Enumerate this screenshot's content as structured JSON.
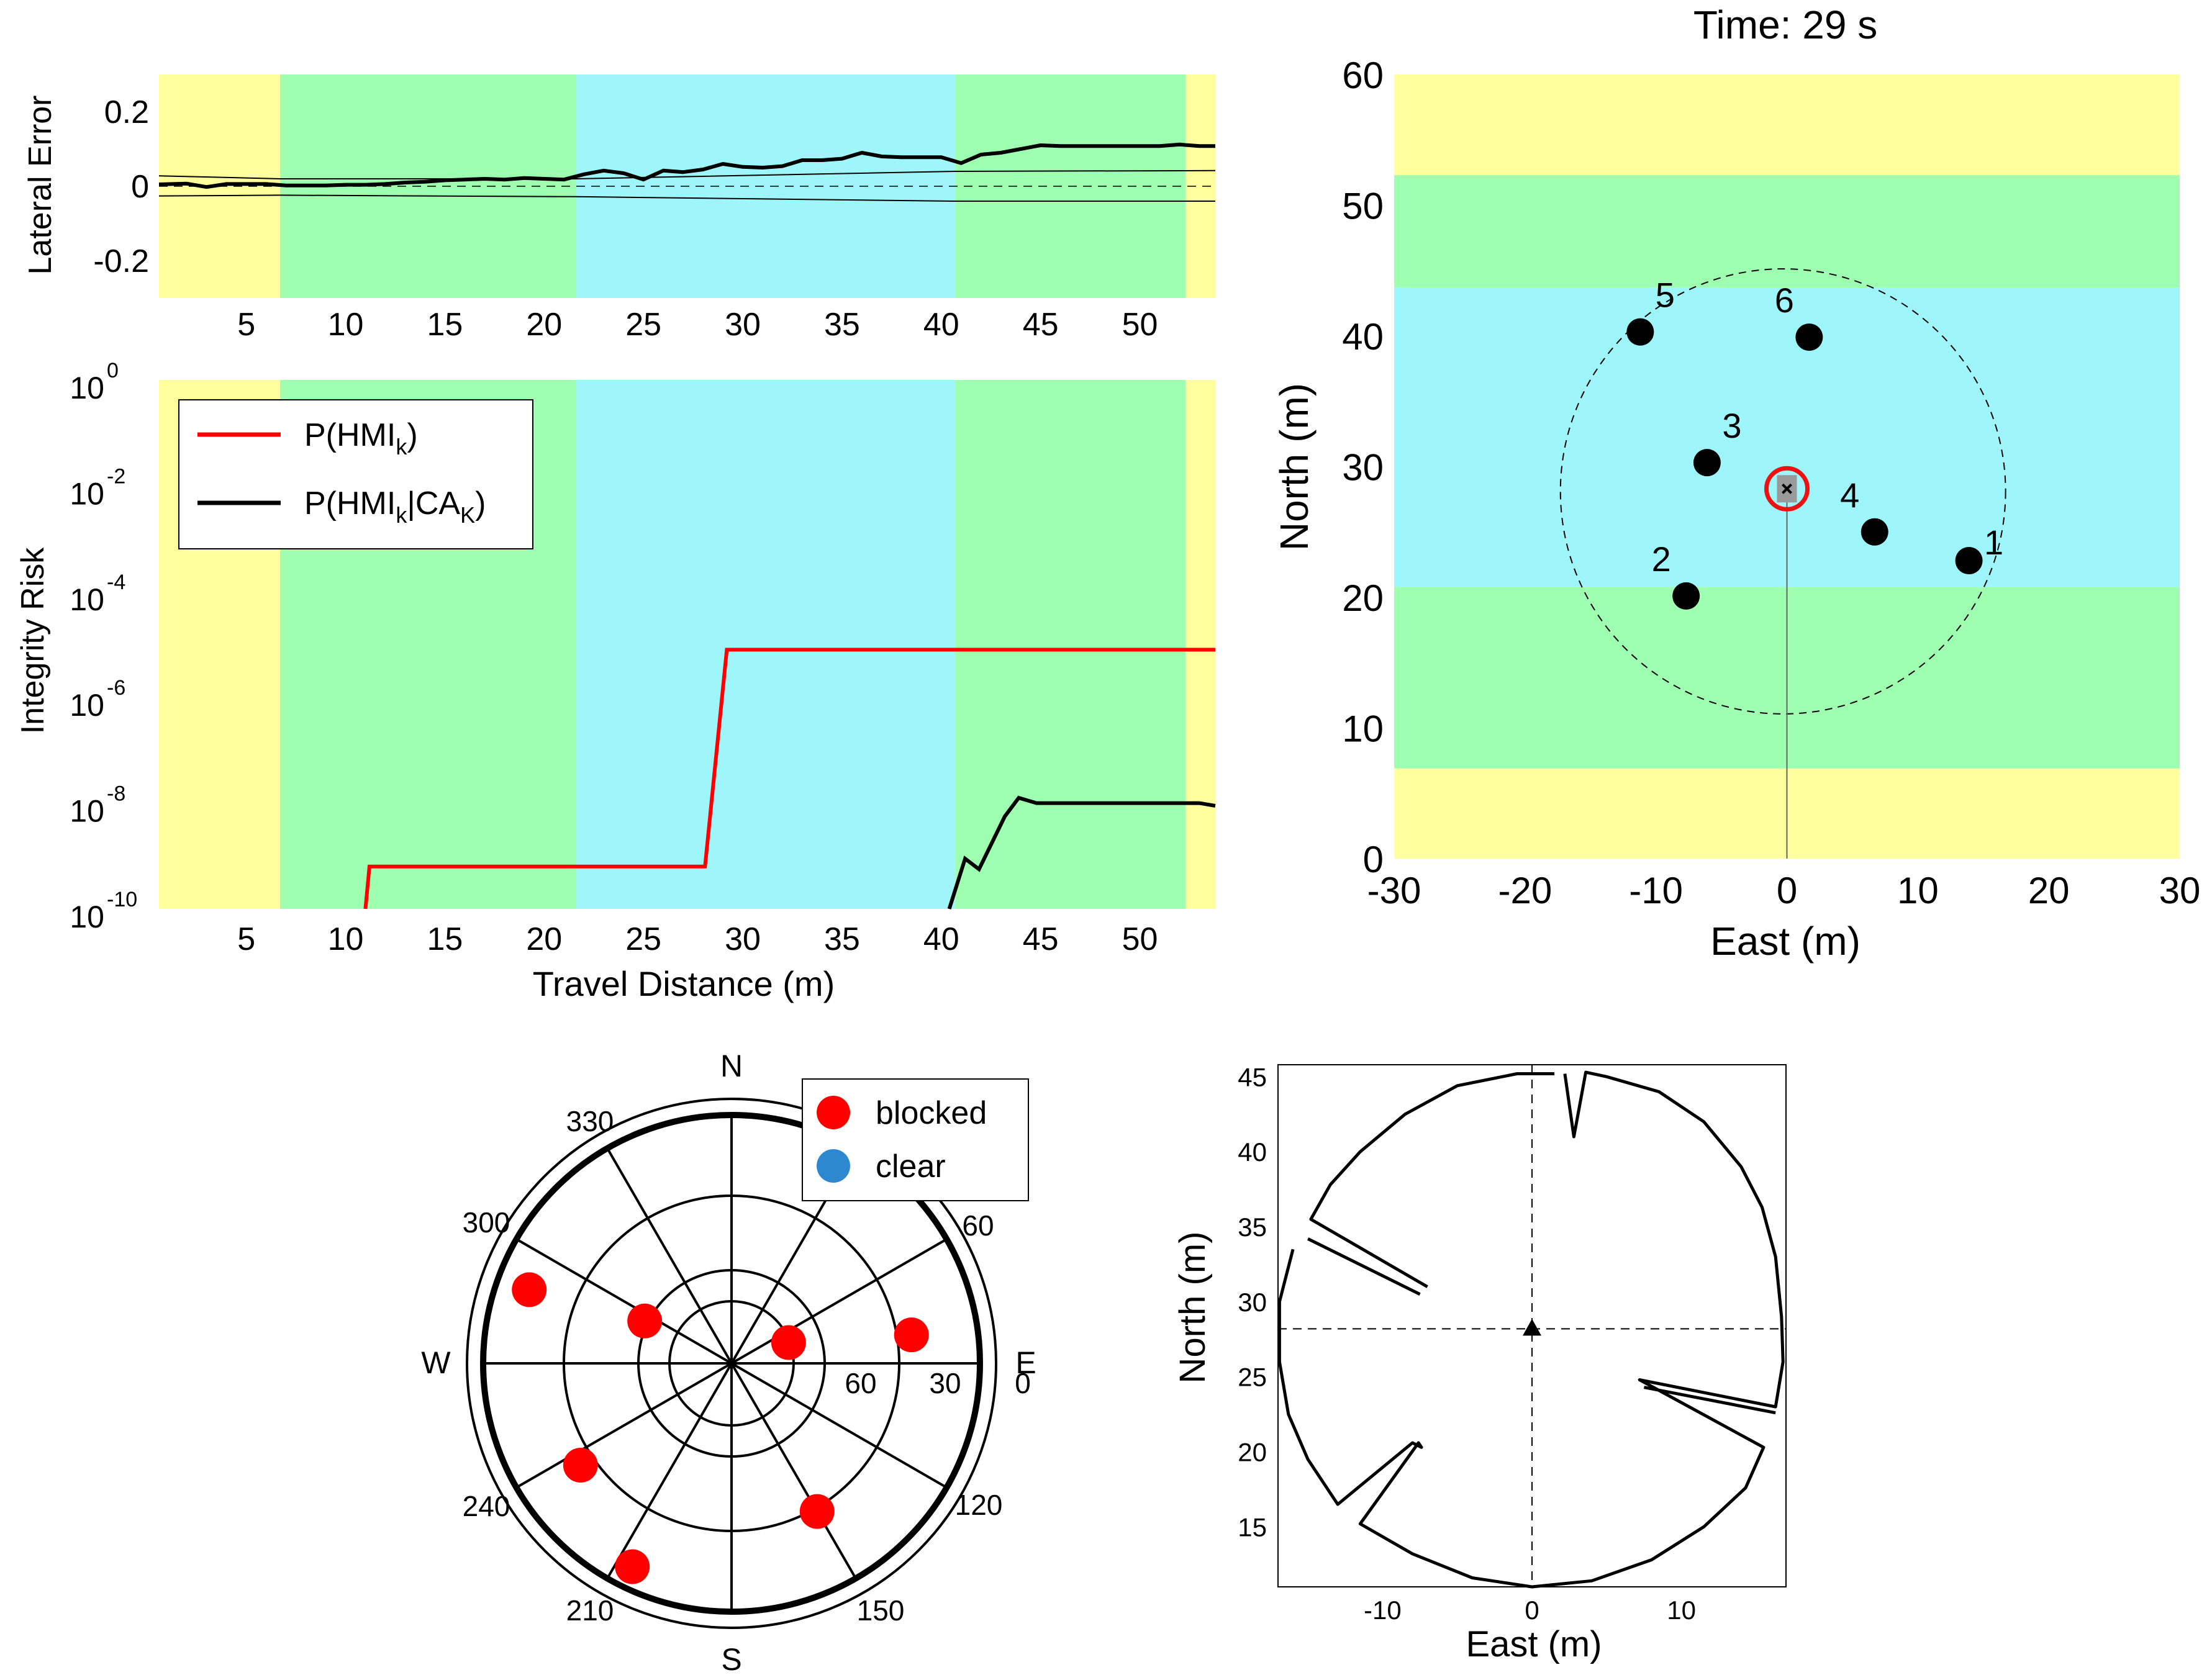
{
  "chart_data": [
    {
      "id": "lateral",
      "type": "line",
      "ylabel": "Lateral Error",
      "xlim": [
        0.6,
        53.8
      ],
      "ylim": [
        -0.3,
        0.3
      ],
      "xticks": [
        5,
        10,
        15,
        20,
        25,
        30,
        35,
        40,
        45,
        50
      ],
      "yticks": [
        {
          "v": 0.2,
          "label": "0.2"
        },
        {
          "v": 0,
          "label": "0"
        },
        {
          "v": -0.2,
          "label": "-0.2"
        }
      ],
      "bands": [
        {
          "from": 0.6,
          "to": 6.7,
          "color": "#ffff9e"
        },
        {
          "from": 6.7,
          "to": 21.6,
          "color": "#9effb0"
        },
        {
          "from": 21.6,
          "to": 40.7,
          "color": "#9ef6fa"
        },
        {
          "from": 40.7,
          "to": 52.3,
          "color": "#9effb0"
        },
        {
          "from": 52.3,
          "to": 53.8,
          "color": "#ffff9e"
        }
      ],
      "series": [
        {
          "name": "lateral error",
          "x": [
            0.6,
            2,
            3,
            4,
            5,
            6,
            7,
            8,
            9,
            10,
            11,
            12,
            13,
            14,
            15,
            16,
            17,
            18,
            19,
            20,
            21,
            22,
            23,
            24,
            25,
            26,
            27,
            28,
            29,
            30,
            31,
            32,
            33,
            34,
            35,
            36,
            37,
            38,
            39,
            40,
            41,
            42,
            43,
            44,
            45,
            46,
            47,
            48,
            49,
            50,
            51,
            52,
            53,
            53.8
          ],
          "y": [
            0.005,
            0.007,
            -0.002,
            0.006,
            0.006,
            0.006,
            0.002,
            0.002,
            0.002,
            0.004,
            0.004,
            0.006,
            0.01,
            0.012,
            0.016,
            0.018,
            0.02,
            0.018,
            0.022,
            0.02,
            0.018,
            0.032,
            0.042,
            0.035,
            0.018,
            0.042,
            0.038,
            0.045,
            0.06,
            0.052,
            0.05,
            0.054,
            0.07,
            0.07,
            0.074,
            0.09,
            0.08,
            0.078,
            0.078,
            0.078,
            0.062,
            0.085,
            0.09,
            0.1,
            0.11,
            0.108,
            0.108,
            0.108,
            0.108,
            0.108,
            0.108,
            0.112,
            0.108,
            0.108
          ],
          "color": "#000000",
          "width": 6
        },
        {
          "name": "upper bound",
          "x": [
            0.6,
            6.7,
            21.6,
            40.7,
            53.8
          ],
          "y": [
            0.028,
            0.02,
            0.02,
            0.04,
            0.042
          ],
          "color": "#000000",
          "width": 2
        },
        {
          "name": "lower bound",
          "x": [
            0.6,
            6.7,
            21.6,
            40.7,
            53.8
          ],
          "y": [
            -0.026,
            -0.024,
            -0.028,
            -0.04,
            -0.04
          ],
          "color": "#000000",
          "width": 2
        },
        {
          "name": "zero",
          "x": [
            0.6,
            53.8
          ],
          "y": [
            0,
            0
          ],
          "color": "#000000",
          "width": 1.5,
          "dash": "14,10"
        }
      ]
    },
    {
      "id": "risk",
      "type": "line",
      "xlabel": "Travel Distance (m)",
      "ylabel": "Integrity Risk",
      "yscale": "log",
      "xlim": [
        0.6,
        53.8
      ],
      "ylim": [
        -10,
        0
      ],
      "xticks": [
        5,
        10,
        15,
        20,
        25,
        30,
        35,
        40,
        45,
        50
      ],
      "yticks": [
        {
          "v": 0,
          "base": "10",
          "exp": "0"
        },
        {
          "v": -2,
          "base": "10",
          "exp": "-2"
        },
        {
          "v": -4,
          "base": "10",
          "exp": "-4"
        },
        {
          "v": -6,
          "base": "10",
          "exp": "-6"
        },
        {
          "v": -8,
          "base": "10",
          "exp": "-8"
        },
        {
          "v": -10,
          "base": "10",
          "exp": "-10"
        }
      ],
      "bands": [
        {
          "from": 0.6,
          "to": 6.7,
          "color": "#ffff9e"
        },
        {
          "from": 6.7,
          "to": 21.6,
          "color": "#9effb0"
        },
        {
          "from": 21.6,
          "to": 40.7,
          "color": "#9ef6fa"
        },
        {
          "from": 40.7,
          "to": 52.3,
          "color": "#9effb0"
        },
        {
          "from": 52.3,
          "to": 53.8,
          "color": "#ffff9e"
        }
      ],
      "legend": [
        {
          "label": "P(HMI",
          "sub": "k",
          "label2": ")",
          "color": "#ff0000"
        },
        {
          "label": "P(HMI",
          "sub": "k",
          "label2": "|CA",
          "sub2": "K",
          "label3": ")",
          "color": "#000000"
        }
      ],
      "series": [
        {
          "name": "P(HMIk)",
          "x": [
            11,
            11.2,
            28.1,
            29.2,
            53.8
          ],
          "y": [
            -10,
            -9.2,
            -9.2,
            -5.1,
            -5.1
          ],
          "color": "#ff0000",
          "width": 6
        },
        {
          "name": "P(HMIk|CAK)",
          "x": [
            40.4,
            41.2,
            41.9,
            43.2,
            43.9,
            44.8,
            45.5,
            53.0,
            53.8
          ],
          "y": [
            -10,
            -9.05,
            -9.25,
            -8.25,
            -7.9,
            -8.0,
            -8.0,
            -8.0,
            -8.05
          ],
          "color": "#000000",
          "width": 6
        }
      ]
    },
    {
      "id": "map",
      "type": "scatter",
      "title": "Time: 29 s",
      "xlabel": "East (m)",
      "ylabel": "North (m)",
      "xlim": [
        -30,
        30
      ],
      "ylim": [
        0,
        60
      ],
      "xticks": [
        -30,
        -20,
        -10,
        0,
        10,
        20,
        30
      ],
      "yticks": [
        0,
        10,
        20,
        30,
        40,
        50,
        60
      ],
      "bands": [
        {
          "from": 0,
          "to": 6.9,
          "color": "#ffff9e"
        },
        {
          "from": 6.9,
          "to": 20.8,
          "color": "#9effb0"
        },
        {
          "from": 20.8,
          "to": 43.7,
          "color": "#9ef6fa"
        },
        {
          "from": 43.7,
          "to": 52.3,
          "color": "#9effb0"
        },
        {
          "from": 52.3,
          "to": 60,
          "color": "#ffff9e"
        }
      ],
      "circle": {
        "cx": -0.3,
        "cy": 28.1,
        "r": 17
      },
      "vehicle": {
        "x": 0,
        "y": 28.3
      },
      "landmarks": [
        {
          "label": "1",
          "x": 13.9,
          "y": 22.8
        },
        {
          "label": "2",
          "x": -7.7,
          "y": 20.1
        },
        {
          "label": "3",
          "x": -6.1,
          "y": 30.3
        },
        {
          "label": "4",
          "x": 6.7,
          "y": 25
        },
        {
          "label": "5",
          "x": -11.2,
          "y": 40.3
        },
        {
          "label": "6",
          "x": 1.7,
          "y": 39.9
        }
      ]
    },
    {
      "id": "polar",
      "type": "scatter",
      "directions": {
        "n": "N",
        "e": "E",
        "s": "S",
        "w": "W"
      },
      "angle_labels": [
        "30",
        "60",
        "120",
        "150",
        "210",
        "240",
        "300",
        "330"
      ],
      "radial_labels": [
        "60",
        "30",
        "0"
      ],
      "legend": [
        {
          "label": "blocked",
          "color": "#ff0000"
        },
        {
          "label": "clear",
          "color": "#2e88d0"
        }
      ],
      "points": [
        {
          "az": 290,
          "el": 12,
          "status": "blocked"
        },
        {
          "az": 296,
          "el": 55,
          "status": "blocked"
        },
        {
          "az": 70,
          "el": 68,
          "status": "blocked"
        },
        {
          "az": 81,
          "el": 24,
          "status": "blocked"
        },
        {
          "az": 236,
          "el": 24,
          "status": "blocked"
        },
        {
          "az": 206,
          "el": 8,
          "status": "blocked"
        },
        {
          "az": 150,
          "el": 28,
          "status": "blocked"
        }
      ]
    },
    {
      "id": "scan",
      "type": "line",
      "xlabel": "East (m)",
      "ylabel": "North (m)",
      "xlim": [
        -17,
        17
      ],
      "ylim": [
        11,
        45.8
      ],
      "xticks": [
        {
          "v": -10,
          "label": "-10"
        },
        {
          "v": 0,
          "label": "0"
        },
        {
          "v": 10,
          "label": "10"
        }
      ],
      "yticks": [
        15,
        20,
        25,
        30,
        35,
        40,
        45
      ],
      "origin": {
        "x": 0,
        "y": 28.2
      }
    }
  ]
}
